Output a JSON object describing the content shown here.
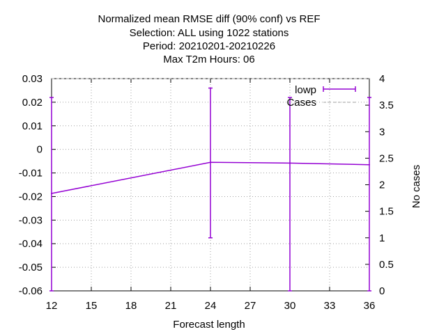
{
  "chart_data": {
    "type": "line",
    "title_lines": [
      "Normalized mean RMSE diff (90% conf) vs REF",
      "Selection: ALL using  1022 stations",
      "Period: 20210201-20210226",
      "Max T2m   Hours:  06"
    ],
    "xlabel": "Forecast length",
    "ylabel": "",
    "y2label": "No cases",
    "xlim": [
      12,
      36
    ],
    "ylim": [
      -0.06,
      0.03
    ],
    "y2lim": [
      0,
      4
    ],
    "x_ticks": [
      "12",
      "15",
      "18",
      "21",
      "24",
      "27",
      "30",
      "33",
      "36"
    ],
    "y_ticks": [
      "0.03",
      "0.02",
      "0.01",
      "0",
      "-0.01",
      "-0.02",
      "-0.03",
      "-0.04",
      "-0.05",
      "-0.06"
    ],
    "y2_ticks": [
      "4",
      "3.5",
      "3",
      "2.5",
      "2",
      "1.5",
      "1",
      "0.5",
      "0"
    ],
    "grid": true,
    "legend_position": "top-right",
    "series": [
      {
        "name": "lowp",
        "color": "#9400d3",
        "x": [
          12,
          24,
          30,
          36
        ],
        "y": [
          -0.0187,
          -0.0055,
          -0.0058,
          -0.0065
        ],
        "err_low": [
          -0.06,
          -0.0375,
          -0.06,
          -0.06
        ],
        "err_high": [
          0.022,
          0.026,
          0.022,
          0.022
        ]
      },
      {
        "name": "Cases",
        "color": "#a0a0a0",
        "style": "dashed",
        "x": [
          12,
          24,
          30,
          36
        ],
        "y": [
          4,
          4,
          4,
          4
        ]
      }
    ]
  }
}
